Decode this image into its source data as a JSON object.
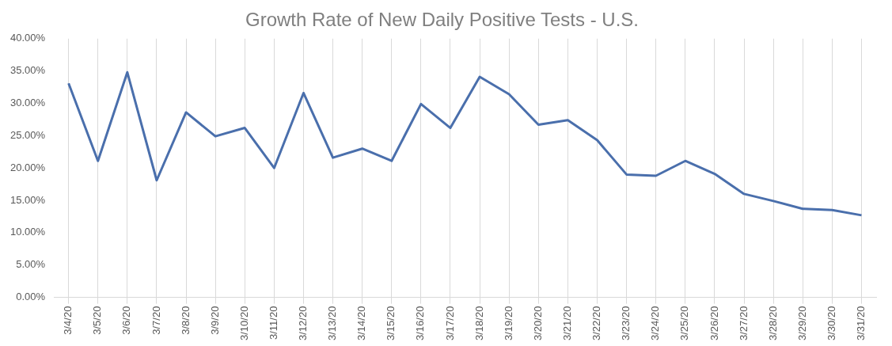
{
  "chart_data": {
    "type": "line",
    "title": "Growth Rate of New Daily Positive Tests - U.S.",
    "categories": [
      "3/4/20",
      "3/5/20",
      "3/6/20",
      "3/7/20",
      "3/8/20",
      "3/9/20",
      "3/10/20",
      "3/11/20",
      "3/12/20",
      "3/13/20",
      "3/14/20",
      "3/15/20",
      "3/16/20",
      "3/17/20",
      "3/18/20",
      "3/19/20",
      "3/20/20",
      "3/21/20",
      "3/22/20",
      "3/23/20",
      "3/24/20",
      "3/25/20",
      "3/26/20",
      "3/27/20",
      "3/28/20",
      "3/29/20",
      "3/30/20",
      "3/31/20"
    ],
    "series": [
      {
        "color": "#4a6fac",
        "values": [
          33.1,
          21.1,
          34.8,
          18.1,
          28.6,
          24.9,
          26.2,
          20.0,
          31.6,
          21.6,
          23.0,
          21.1,
          29.9,
          26.2,
          34.1,
          31.4,
          26.7,
          27.4,
          24.3,
          19.0,
          18.8,
          21.1,
          19.1,
          16.0,
          14.9,
          13.7,
          13.5,
          12.7
        ]
      }
    ],
    "ylim": [
      0,
      40
    ],
    "yticks": [
      {
        "value": 0,
        "label": "0.00%"
      },
      {
        "value": 5,
        "label": "5.00%"
      },
      {
        "value": 10,
        "label": "10.00%"
      },
      {
        "value": 15,
        "label": "15.00%"
      },
      {
        "value": 20,
        "label": "20.00%"
      },
      {
        "value": 25,
        "label": "25.00%"
      },
      {
        "value": 30,
        "label": "30.00%"
      },
      {
        "value": 35,
        "label": "35.00%"
      },
      {
        "value": 40,
        "label": "40.00%"
      }
    ],
    "grid": "x",
    "legend": false,
    "marker": "none",
    "line_style": "solid"
  }
}
